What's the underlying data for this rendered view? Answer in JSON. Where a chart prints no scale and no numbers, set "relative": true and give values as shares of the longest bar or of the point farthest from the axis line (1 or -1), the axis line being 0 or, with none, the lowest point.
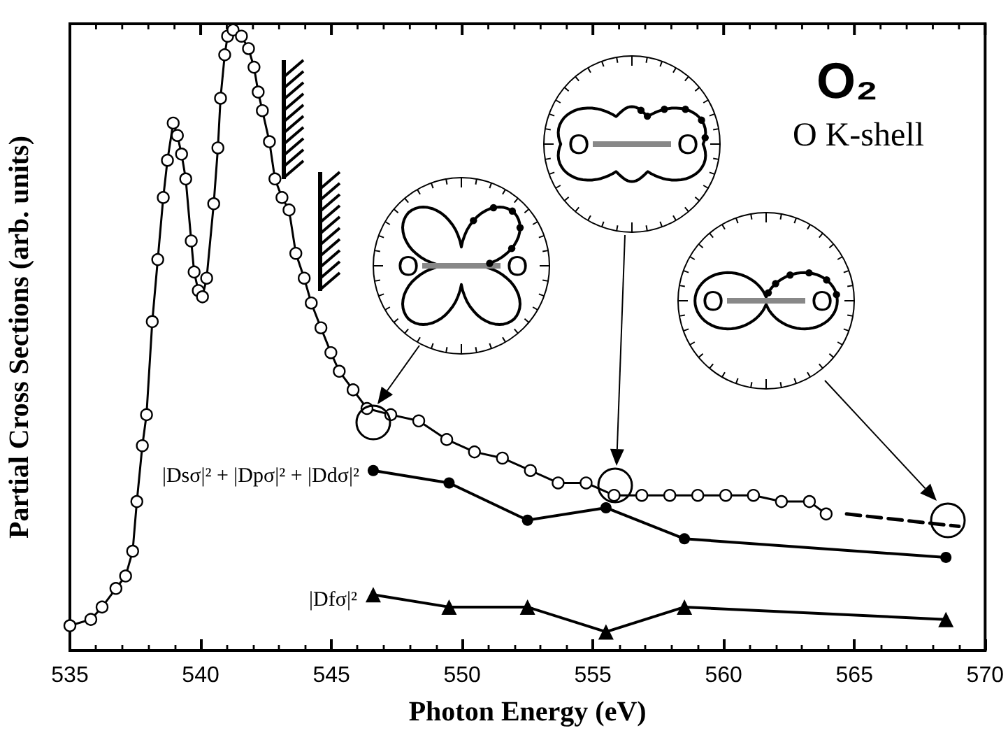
{
  "chart_data": {
    "type": "line",
    "relative": true,
    "xlabel": "Photon Energy (eV)",
    "ylabel": "Partial Cross Sections (arb. units)",
    "xlim": [
      535,
      570
    ],
    "xticks": [
      535,
      540,
      545,
      550,
      555,
      560,
      565,
      570
    ],
    "annotations": [
      "O₂",
      "O K-shell",
      "O",
      "O",
      "O",
      "O",
      "O",
      "O"
    ],
    "grid": false,
    "series": [
      {
        "color": "#000000",
        "marker": "circle",
        "line_style": "solid",
        "x": [
          535.0,
          535.8,
          536.23,
          536.76,
          537.13,
          537.4,
          537.56,
          537.77,
          537.93,
          538.15,
          538.36,
          538.57,
          538.73,
          538.95,
          539.11,
          539.27,
          539.43,
          539.64,
          539.75,
          539.91,
          540.07,
          540.23,
          540.5,
          540.66,
          540.76,
          540.92,
          541.03,
          541.24,
          541.56,
          541.83,
          542.04,
          542.2,
          542.36,
          542.63,
          542.84,
          543.11,
          543.38,
          543.64,
          543.96,
          544.23,
          544.6,
          544.98,
          545.3,
          545.83,
          546.36,
          547.27,
          548.34,
          549.41,
          550.47,
          551.54,
          552.61,
          553.67,
          554.74,
          555.81,
          556.87,
          557.94,
          559.01,
          560.08,
          561.14,
          562.21,
          563.28,
          563.92
        ],
        "values": [
          0.04,
          0.05,
          0.07,
          0.1,
          0.12,
          0.16,
          0.24,
          0.33,
          0.38,
          0.53,
          0.63,
          0.73,
          0.79,
          0.85,
          0.83,
          0.8,
          0.76,
          0.66,
          0.61,
          0.58,
          0.57,
          0.6,
          0.72,
          0.81,
          0.89,
          0.96,
          0.99,
          1.0,
          0.99,
          0.97,
          0.94,
          0.9,
          0.87,
          0.82,
          0.76,
          0.73,
          0.71,
          0.64,
          0.6,
          0.56,
          0.52,
          0.48,
          0.45,
          0.42,
          0.39,
          0.38,
          0.37,
          0.34,
          0.32,
          0.31,
          0.29,
          0.27,
          0.27,
          0.25,
          0.25,
          0.25,
          0.25,
          0.25,
          0.25,
          0.24,
          0.24,
          0.22
        ]
      },
      {
        "name": "|Dsσ|² + |Dpσ|² + |Ddσ|²",
        "color": "#000000",
        "marker": "circle",
        "line_style": "solid",
        "x": [
          546.6,
          549.5,
          552.5,
          555.5,
          558.5,
          568.5
        ],
        "values": [
          0.29,
          0.27,
          0.21,
          0.23,
          0.18,
          0.15
        ]
      },
      {
        "name": "|Dfσ|²",
        "color": "#000000",
        "marker": "triangle",
        "line_style": "solid",
        "x": [
          546.6,
          549.5,
          552.5,
          555.5,
          558.5,
          568.5
        ],
        "values": [
          0.09,
          0.07,
          0.07,
          0.03,
          0.07,
          0.05
        ]
      },
      {
        "color": "#000000",
        "marker": "none",
        "line_style": "dashed",
        "x": [
          564.7,
          569.0
        ],
        "values": [
          0.22,
          0.2
        ]
      }
    ]
  }
}
